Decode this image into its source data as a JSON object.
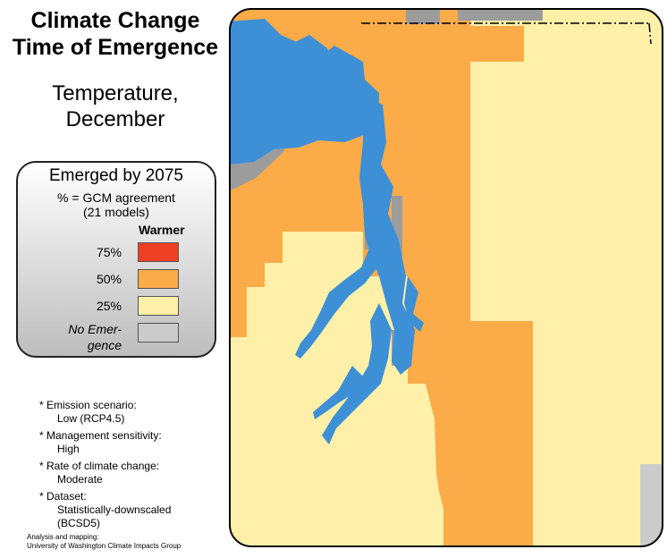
{
  "title": {
    "line1": "Climate Change",
    "line2": "Time of Emergence"
  },
  "subtitle": {
    "line1": "Temperature,",
    "line2": "December"
  },
  "legend": {
    "title": "Emerged by 2075",
    "subtitle_line1": "% = GCM agreement",
    "subtitle_line2": "(21 models)",
    "column_header": "Warmer",
    "items": [
      {
        "label": "75%",
        "color": "#ee4025"
      },
      {
        "label": "50%",
        "color": "#fbab48"
      },
      {
        "label": "25%",
        "color": "#fef0a8"
      },
      {
        "label_line1": "No Emer-",
        "label_line2": "gence",
        "color": "#cbcbcb"
      }
    ]
  },
  "notes": [
    {
      "heading": "* Emission scenario:",
      "detail": "Low (RCP4.5)"
    },
    {
      "heading": "* Management sensitivity:",
      "detail": "High"
    },
    {
      "heading": "* Rate of climate change:",
      "detail": "Moderate"
    },
    {
      "heading": "* Dataset:",
      "detail_line1": "Statistically-downscaled",
      "detail_line2": "(BCSD5)"
    }
  ],
  "credit": {
    "line1": "Analysis and mapping:",
    "line2": "University of Washington Climate Impacts Group"
  },
  "map": {
    "colors": {
      "water": "#3d8fd6",
      "pct50": "#fbab48",
      "pct25": "#fef0a8",
      "no_data_gray": "#9c9c9c",
      "no_emergence": "#cbcbcb",
      "border": "#000000"
    }
  }
}
